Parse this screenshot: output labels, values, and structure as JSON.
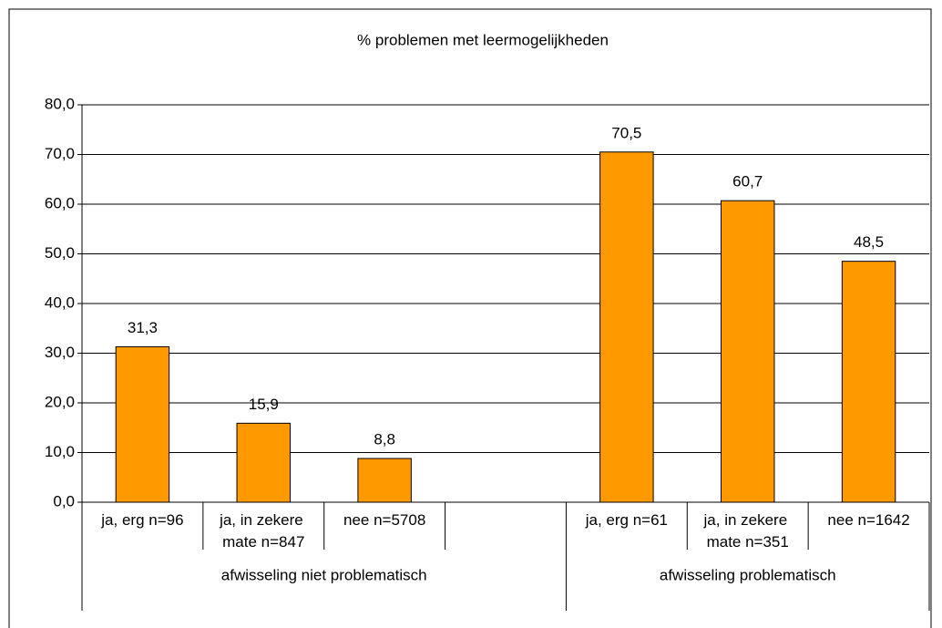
{
  "chart_data": {
    "type": "bar",
    "title": "% problemen met leermogelijkheden",
    "categories": [
      "ja, erg n=96",
      "ja, in zekere mate n=847",
      "nee n=5708",
      null,
      "ja, erg n=61",
      "ja, in zekere mate n=351",
      "nee n=1642"
    ],
    "values": [
      31.3,
      15.9,
      8.8,
      null,
      70.5,
      60.7,
      48.5
    ],
    "value_labels": [
      "31,3",
      "15,9",
      "8,8",
      null,
      "70,5",
      "60,7",
      "48,5"
    ],
    "groups": [
      "afwisseling niet problematisch",
      "afwisseling problematisch"
    ],
    "color": "#ff9900",
    "ylim": [
      0,
      80
    ],
    "yticks": [
      {
        "value": 0,
        "label": "0,0"
      },
      {
        "value": 10,
        "label": "10,0"
      },
      {
        "value": 20,
        "label": "20,0"
      },
      {
        "value": 30,
        "label": "30,0"
      },
      {
        "value": 40,
        "label": "40,0"
      },
      {
        "value": 50,
        "label": "50,0"
      },
      {
        "value": 60,
        "label": "60,0"
      },
      {
        "value": 70,
        "label": "70,0"
      },
      {
        "value": 80,
        "label": "80,0"
      }
    ],
    "grid": true
  }
}
